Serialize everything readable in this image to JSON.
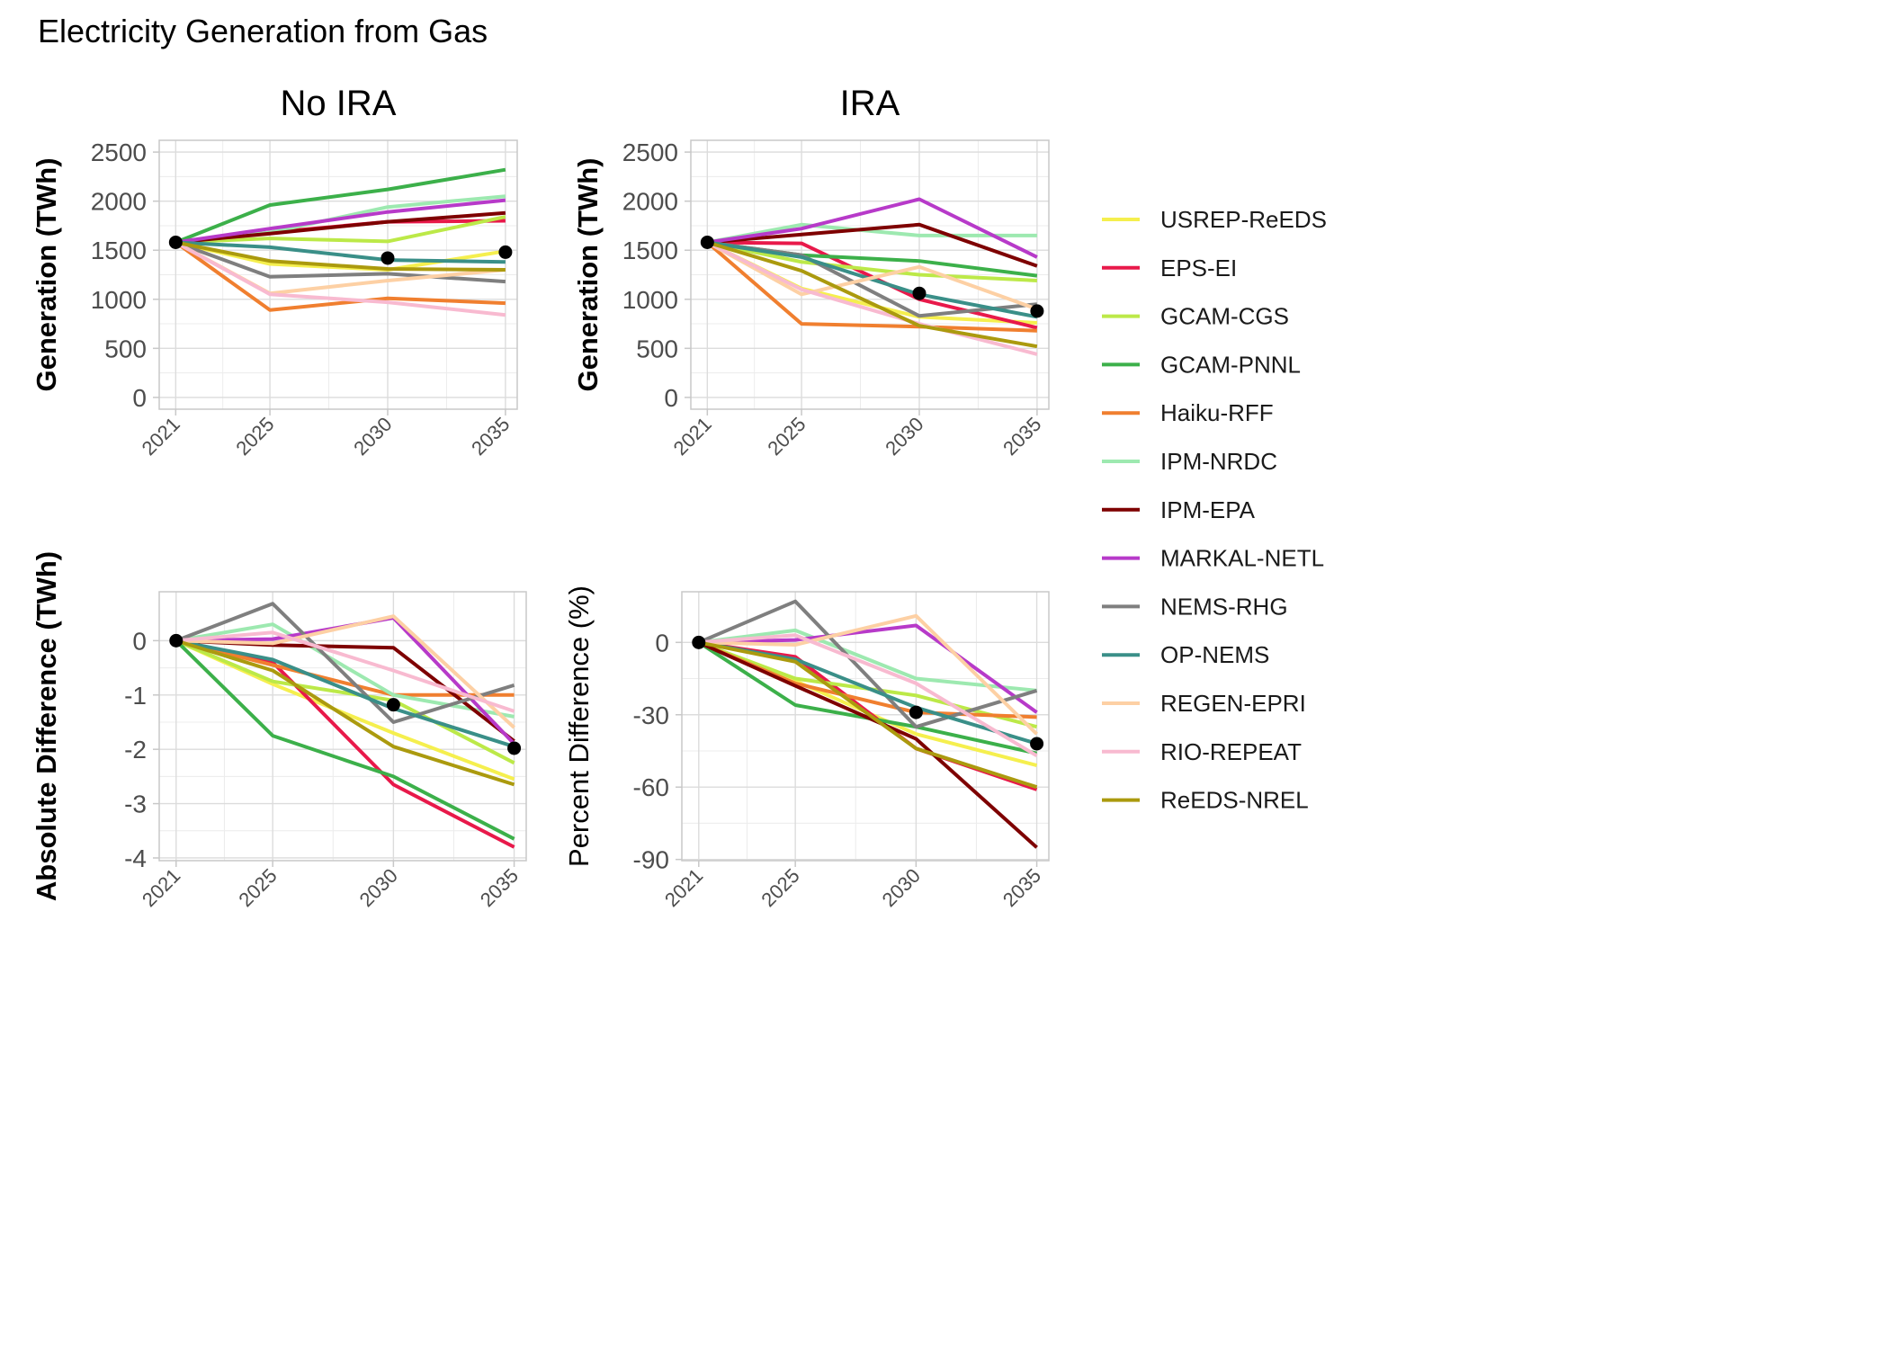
{
  "figure_title": "Electricity Generation from Gas",
  "legend": [
    {
      "name": "USREP-ReEDS",
      "color": "#f5ef4e"
    },
    {
      "name": "EPS-EI",
      "color": "#e8194a"
    },
    {
      "name": "GCAM-CGS",
      "color": "#bce948"
    },
    {
      "name": "GCAM-PNNL",
      "color": "#3cb04a"
    },
    {
      "name": "Haiku-RFF",
      "color": "#f07f2f"
    },
    {
      "name": "IPM-NRDC",
      "color": "#9de9b0"
    },
    {
      "name": "IPM-EPA",
      "color": "#7e0000"
    },
    {
      "name": "MARKAL-NETL",
      "color": "#b73ac9"
    },
    {
      "name": "NEMS-RHG",
      "color": "#7f7f7f"
    },
    {
      "name": "OP-NEMS",
      "color": "#3a8f88"
    },
    {
      "name": "REGEN-EPRI",
      "color": "#fdd0a4"
    },
    {
      "name": "RIO-REPEAT",
      "color": "#f8bad0"
    },
    {
      "name": "ReEDS-NREL",
      "color": "#ab9a0e"
    }
  ],
  "chart_data": [
    {
      "type": "line",
      "title": "No IRA",
      "ylabel": "Generation (TWh)",
      "xlabel": "",
      "x": [
        2021,
        2025,
        2030,
        2035
      ],
      "xlim": [
        2020.3,
        2035.5
      ],
      "ylim": [
        -120,
        2620
      ],
      "yticks": [
        0,
        500,
        1000,
        1500,
        2000,
        2500
      ],
      "tick_labels_y": [
        "0",
        "500",
        "1000",
        "1500",
        "2000",
        "2500"
      ],
      "tick_labels_x": [
        "2021",
        "2025",
        "2030",
        "2035"
      ],
      "grid": true,
      "series": [
        {
          "name": "USREP-ReEDS",
          "values": [
            1580,
            1360,
            1300,
            1490
          ]
        },
        {
          "name": "EPS-EI",
          "values": [
            1580,
            1680,
            1790,
            1800
          ]
        },
        {
          "name": "GCAM-CGS",
          "values": [
            1580,
            1620,
            1590,
            1840
          ]
        },
        {
          "name": "GCAM-PNNL",
          "values": [
            1580,
            1960,
            2120,
            2320
          ]
        },
        {
          "name": "Haiku-RFF",
          "values": [
            1580,
            890,
            1010,
            960
          ]
        },
        {
          "name": "IPM-NRDC",
          "values": [
            1580,
            1680,
            1940,
            2050
          ]
        },
        {
          "name": "IPM-EPA",
          "values": [
            1580,
            1670,
            1790,
            1880
          ]
        },
        {
          "name": "MARKAL-NETL",
          "values": [
            1580,
            1720,
            1890,
            2010
          ]
        },
        {
          "name": "NEMS-RHG",
          "values": [
            1580,
            1230,
            1260,
            1180
          ]
        },
        {
          "name": "OP-NEMS",
          "values": [
            1580,
            1530,
            1400,
            1380
          ]
        },
        {
          "name": "REGEN-EPRI",
          "values": [
            1580,
            1060,
            1190,
            1300
          ]
        },
        {
          "name": "RIO-REPEAT",
          "values": [
            1580,
            1050,
            970,
            840
          ]
        },
        {
          "name": "ReEDS-NREL",
          "values": [
            1580,
            1390,
            1310,
            1300
          ]
        }
      ],
      "markers": [
        {
          "x": 2021,
          "y": 1580
        },
        {
          "x": 2030,
          "y": 1420
        },
        {
          "x": 2035,
          "y": 1480
        }
      ]
    },
    {
      "type": "line",
      "title": "IRA",
      "ylabel": "Generation (TWh)",
      "xlabel": "",
      "x": [
        2021,
        2025,
        2030,
        2035
      ],
      "xlim": [
        2020.3,
        2035.5
      ],
      "ylim": [
        -120,
        2620
      ],
      "yticks": [
        0,
        500,
        1000,
        1500,
        2000,
        2500
      ],
      "tick_labels_y": [
        "0",
        "500",
        "1000",
        "1500",
        "2000",
        "2500"
      ],
      "tick_labels_x": [
        "2021",
        "2025",
        "2030",
        "2035"
      ],
      "grid": true,
      "series": [
        {
          "name": "USREP-ReEDS",
          "values": [
            1580,
            1110,
            820,
            760
          ]
        },
        {
          "name": "EPS-EI",
          "values": [
            1580,
            1570,
            1000,
            710
          ]
        },
        {
          "name": "GCAM-CGS",
          "values": [
            1580,
            1380,
            1250,
            1190
          ]
        },
        {
          "name": "GCAM-PNNL",
          "values": [
            1580,
            1450,
            1390,
            1240
          ]
        },
        {
          "name": "Haiku-RFF",
          "values": [
            1580,
            750,
            720,
            680
          ]
        },
        {
          "name": "IPM-NRDC",
          "values": [
            1580,
            1760,
            1650,
            1650
          ]
        },
        {
          "name": "IPM-EPA",
          "values": [
            1580,
            1660,
            1760,
            1340
          ]
        },
        {
          "name": "MARKAL-NETL",
          "values": [
            1580,
            1720,
            2020,
            1430
          ]
        },
        {
          "name": "NEMS-RHG",
          "values": [
            1580,
            1450,
            830,
            950
          ]
        },
        {
          "name": "OP-NEMS",
          "values": [
            1580,
            1430,
            1050,
            820
          ]
        },
        {
          "name": "REGEN-EPRI",
          "values": [
            1580,
            1050,
            1330,
            900
          ]
        },
        {
          "name": "RIO-REPEAT",
          "values": [
            1580,
            1100,
            750,
            440
          ]
        },
        {
          "name": "ReEDS-NREL",
          "values": [
            1580,
            1290,
            730,
            520
          ]
        }
      ],
      "markers": [
        {
          "x": 2021,
          "y": 1580
        },
        {
          "x": 2030,
          "y": 1060
        },
        {
          "x": 2035,
          "y": 880
        }
      ]
    },
    {
      "type": "line",
      "title": "",
      "ylabel": "Absolute Difference (TWh)",
      "xlabel": "",
      "x": [
        2021,
        2025,
        2030,
        2035
      ],
      "xlim": [
        2020.3,
        2035.5
      ],
      "ylim": [
        -4.05,
        0.9
      ],
      "yticks": [
        -4,
        -3,
        -2,
        -1,
        0
      ],
      "tick_labels_y": [
        "-4",
        "-3",
        "-2",
        "-1",
        "0"
      ],
      "tick_labels_x": [
        "2021",
        "2025",
        "2030",
        "2035"
      ],
      "grid": true,
      "series": [
        {
          "name": "USREP-ReEDS",
          "values": [
            0,
            -0.8,
            -1.7,
            -2.55
          ]
        },
        {
          "name": "EPS-EI",
          "values": [
            0,
            -0.4,
            -2.65,
            -3.8
          ]
        },
        {
          "name": "GCAM-CGS",
          "values": [
            0,
            -0.75,
            -1.1,
            -2.25
          ]
        },
        {
          "name": "GCAM-PNNL",
          "values": [
            0,
            -1.75,
            -2.5,
            -3.65
          ]
        },
        {
          "name": "Haiku-RFF",
          "values": [
            0,
            -0.45,
            -1.0,
            -1.0
          ]
        },
        {
          "name": "IPM-NRDC",
          "values": [
            0,
            0.3,
            -1.0,
            -1.4
          ]
        },
        {
          "name": "IPM-EPA",
          "values": [
            0,
            -0.08,
            -0.13,
            -1.85
          ]
        },
        {
          "name": "MARKAL-NETL",
          "values": [
            0,
            0.03,
            0.42,
            -1.9
          ]
        },
        {
          "name": "NEMS-RHG",
          "values": [
            0,
            0.68,
            -1.5,
            -0.82
          ]
        },
        {
          "name": "OP-NEMS",
          "values": [
            0,
            -0.35,
            -1.25,
            -1.95
          ]
        },
        {
          "name": "REGEN-EPRI",
          "values": [
            0,
            -0.05,
            0.45,
            -1.6
          ]
        },
        {
          "name": "RIO-REPEAT",
          "values": [
            0,
            0.15,
            -0.55,
            -1.3
          ]
        },
        {
          "name": "ReEDS-NREL",
          "values": [
            0,
            -0.55,
            -1.95,
            -2.65
          ]
        }
      ],
      "markers": [
        {
          "x": 2021,
          "y": 0
        },
        {
          "x": 2030,
          "y": -1.18
        },
        {
          "x": 2035,
          "y": -1.98
        }
      ]
    },
    {
      "type": "line",
      "title": "",
      "ylabel": "Percent Difference (%)",
      "xlabel": "",
      "x": [
        2021,
        2025,
        2030,
        2035
      ],
      "xlim": [
        2020.3,
        2035.5
      ],
      "ylim": [
        -90.5,
        21
      ],
      "yticks": [
        -90,
        -60,
        -30,
        0
      ],
      "tick_labels_y": [
        "-90",
        "-60",
        "-30",
        "0"
      ],
      "tick_labels_x": [
        "2021",
        "2025",
        "2030",
        "2035"
      ],
      "grid": true,
      "series": [
        {
          "name": "USREP-ReEDS",
          "values": [
            0,
            -16,
            -38,
            -51
          ]
        },
        {
          "name": "EPS-EI",
          "values": [
            0,
            -6,
            -44,
            -61
          ]
        },
        {
          "name": "GCAM-CGS",
          "values": [
            0,
            -15,
            -22,
            -35
          ]
        },
        {
          "name": "GCAM-PNNL",
          "values": [
            0,
            -26,
            -35,
            -46
          ]
        },
        {
          "name": "Haiku-RFF",
          "values": [
            0,
            -17,
            -29,
            -31
          ]
        },
        {
          "name": "IPM-NRDC",
          "values": [
            0,
            5,
            -15,
            -20
          ]
        },
        {
          "name": "IPM-EPA",
          "values": [
            0,
            -18,
            -40,
            -85
          ]
        },
        {
          "name": "MARKAL-NETL",
          "values": [
            0,
            1,
            7,
            -29
          ]
        },
        {
          "name": "NEMS-RHG",
          "values": [
            0,
            17,
            -35,
            -20
          ]
        },
        {
          "name": "OP-NEMS",
          "values": [
            0,
            -7,
            -27,
            -42
          ]
        },
        {
          "name": "REGEN-EPRI",
          "values": [
            0,
            -1,
            11,
            -38
          ]
        },
        {
          "name": "RIO-REPEAT",
          "values": [
            0,
            3,
            -17,
            -47
          ]
        },
        {
          "name": "ReEDS-NREL",
          "values": [
            0,
            -8,
            -44,
            -60
          ]
        }
      ],
      "markers": [
        {
          "x": 2021,
          "y": 0
        },
        {
          "x": 2030,
          "y": -29
        },
        {
          "x": 2035,
          "y": -42
        }
      ]
    }
  ]
}
